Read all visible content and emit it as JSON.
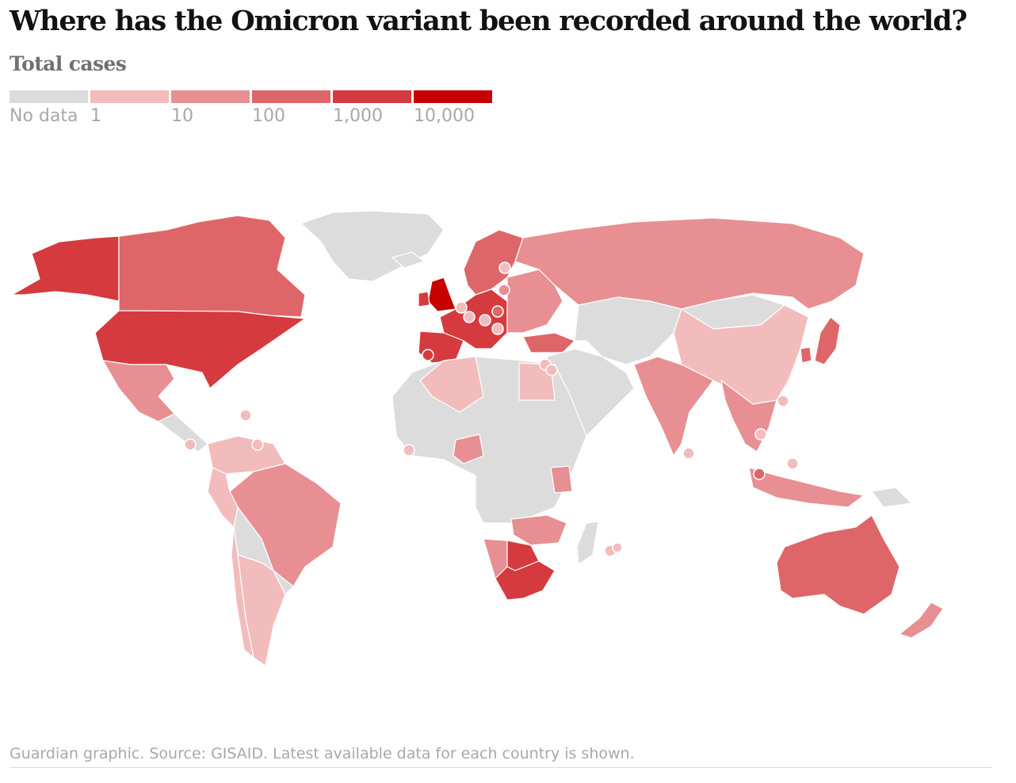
{
  "title": "Where has the Omicron variant been recorded around the world?",
  "subtitle": "Total cases",
  "legend": {
    "items": [
      {
        "label": "No data",
        "color": "#dcdcdc"
      },
      {
        "label": "1",
        "color": "#f2bcbd"
      },
      {
        "label": "10",
        "color": "#e78f92"
      },
      {
        "label": "100",
        "color": "#de6668"
      },
      {
        "label": "1,000",
        "color": "#d53a3e"
      },
      {
        "label": "10,000",
        "color": "#c70000"
      }
    ]
  },
  "source": "Guardian graphic. Source: GISAID. Latest available data for each country is shown.",
  "map_data": {
    "type": "choropleth",
    "scale": "log",
    "regions": [
      {
        "name": "Greenland",
        "bin": "No data"
      },
      {
        "name": "Alaska",
        "bin": "1,000"
      },
      {
        "name": "Canada",
        "bin": "100"
      },
      {
        "name": "United States",
        "bin": "1,000"
      },
      {
        "name": "Mexico",
        "bin": "10"
      },
      {
        "name": "Central America",
        "bin": "No data"
      },
      {
        "name": "Colombia/Venezuela",
        "bin": "1"
      },
      {
        "name": "Brazil",
        "bin": "10"
      },
      {
        "name": "Peru",
        "bin": "1"
      },
      {
        "name": "Bolivia/Paraguay",
        "bin": "No data"
      },
      {
        "name": "Argentina",
        "bin": "1"
      },
      {
        "name": "Chile",
        "bin": "1"
      },
      {
        "name": "Uruguay",
        "bin": "No data"
      },
      {
        "name": "Iceland",
        "bin": "No data"
      },
      {
        "name": "United Kingdom",
        "bin": "10,000"
      },
      {
        "name": "Ireland",
        "bin": "1,000"
      },
      {
        "name": "Scandinavia",
        "bin": "100"
      },
      {
        "name": "Western Europe",
        "bin": "1,000"
      },
      {
        "name": "Spain/Portugal",
        "bin": "1,000"
      },
      {
        "name": "Eastern Europe",
        "bin": "10"
      },
      {
        "name": "Russia",
        "bin": "10"
      },
      {
        "name": "Turkey",
        "bin": "100"
      },
      {
        "name": "Central Asia",
        "bin": "No data"
      },
      {
        "name": "Middle East",
        "bin": "No data"
      },
      {
        "name": "India",
        "bin": "10"
      },
      {
        "name": "China",
        "bin": "1"
      },
      {
        "name": "Mongolia",
        "bin": "No data"
      },
      {
        "name": "Japan",
        "bin": "100"
      },
      {
        "name": "South Korea",
        "bin": "100"
      },
      {
        "name": "Southeast Asia",
        "bin": "10"
      },
      {
        "name": "Indonesia",
        "bin": "10"
      },
      {
        "name": "Papua New Guinea",
        "bin": "No data"
      },
      {
        "name": "Australia",
        "bin": "100"
      },
      {
        "name": "New Zealand",
        "bin": "10"
      },
      {
        "name": "North & Central Africa",
        "bin": "No data"
      },
      {
        "name": "Algeria",
        "bin": "1"
      },
      {
        "name": "Egypt",
        "bin": "1"
      },
      {
        "name": "Nigeria",
        "bin": "10"
      },
      {
        "name": "Kenya",
        "bin": "10"
      },
      {
        "name": "Zambia/Zimbabwe",
        "bin": "10"
      },
      {
        "name": "Botswana",
        "bin": "1,000"
      },
      {
        "name": "Namibia",
        "bin": "10"
      },
      {
        "name": "South Africa",
        "bin": "1,000"
      },
      {
        "name": "Madagascar",
        "bin": "No data"
      }
    ]
  }
}
